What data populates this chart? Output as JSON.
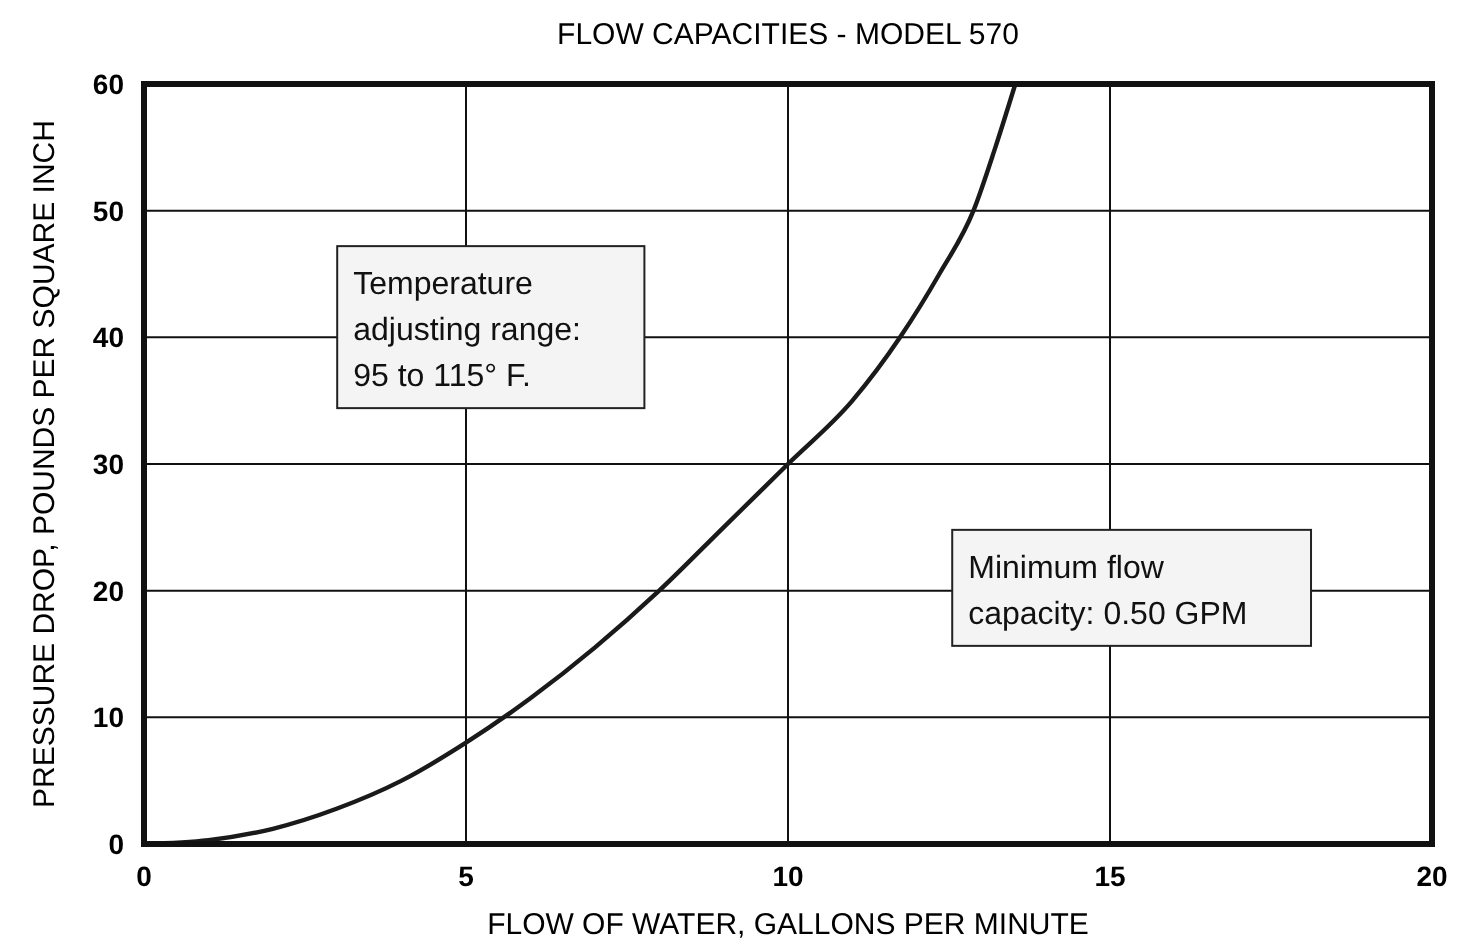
{
  "chart_data": {
    "type": "line",
    "title": "FLOW CAPACITIES - MODEL 570",
    "xlabel": "FLOW OF WATER, GALLONS PER MINUTE",
    "ylabel": "PRESSURE DROP, POUNDS PER SQUARE INCH",
    "series": [
      {
        "color": "#1a1a1a",
        "x": [
          0,
          1,
          2,
          3,
          4,
          5,
          6,
          7,
          8,
          9,
          10,
          11,
          11.74,
          12.35,
          12.88,
          13.22,
          13.53
        ],
        "values": [
          0,
          0.3,
          1.2,
          2.8,
          5,
          8,
          11.5,
          15.5,
          20,
          25,
          30,
          35,
          40,
          45,
          50,
          55,
          60
        ]
      }
    ],
    "xlim": [
      0,
      20
    ],
    "xticks": [
      0,
      5,
      10,
      15,
      20
    ],
    "ylim": [
      0,
      60
    ],
    "yticks": [
      0,
      10,
      20,
      30,
      40,
      50,
      60
    ],
    "grid": true,
    "marker": "none",
    "line_style": "solid",
    "annotations": [
      "Temperature\nadjusting range:\n95 to 115° F.",
      "Minimum flow\ncapacity:  0.50 GPM"
    ]
  }
}
